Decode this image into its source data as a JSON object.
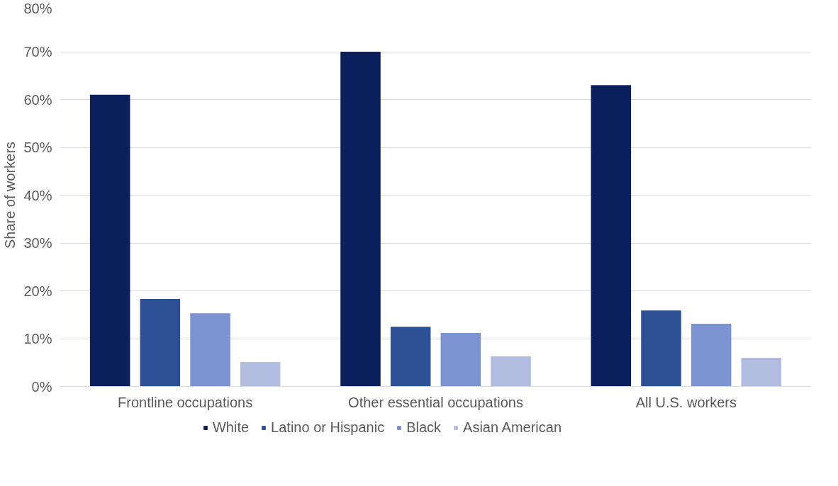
{
  "chart_data": {
    "type": "bar",
    "ylabel": "Share of workers",
    "categories": [
      "Frontline occupations",
      "Other essential occupations",
      "All U.S. workers"
    ],
    "series": [
      {
        "name": "White",
        "color": "#0a1f5c",
        "values": [
          61,
          70,
          63
        ]
      },
      {
        "name": "Latino or Hispanic",
        "color": "#2d4f95",
        "values": [
          18.3,
          12.5,
          15.9
        ]
      },
      {
        "name": "Black",
        "color": "#7b93d1",
        "values": [
          15.3,
          11.2,
          13.1
        ]
      },
      {
        "name": "Asian American",
        "color": "#b1bce0",
        "values": [
          5.1,
          6.3,
          6.0
        ]
      }
    ],
    "ylim": [
      0,
      80
    ],
    "yticks": [
      {
        "value": 0,
        "label": "0%"
      },
      {
        "value": 10,
        "label": "10%"
      },
      {
        "value": 20,
        "label": "20%"
      },
      {
        "value": 30,
        "label": "30%"
      },
      {
        "value": 40,
        "label": "40%"
      },
      {
        "value": 50,
        "label": "50%"
      },
      {
        "value": 60,
        "label": "60%"
      },
      {
        "value": 70,
        "label": "70%"
      },
      {
        "value": 80,
        "label": "80%"
      }
    ],
    "grid": "y",
    "legend": "bottom"
  }
}
